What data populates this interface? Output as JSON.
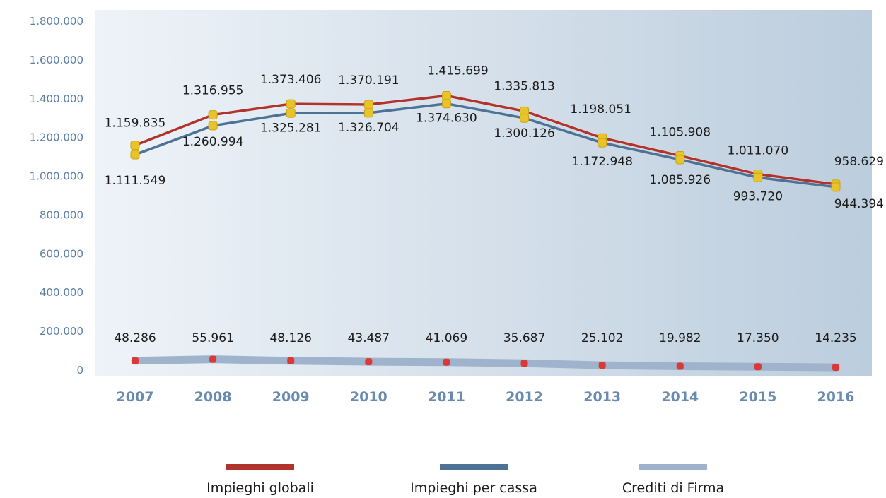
{
  "chart_data": {
    "type": "line",
    "categories": [
      "2007",
      "2008",
      "2009",
      "2010",
      "2011",
      "2012",
      "2013",
      "2014",
      "2015",
      "2016"
    ],
    "ylim": [
      0,
      1800000
    ],
    "yticks": [
      0,
      200000,
      400000,
      600000,
      800000,
      1000000,
      1200000,
      1400000,
      1600000,
      1800000
    ],
    "ytick_labels": [
      "0",
      "200.000",
      "400.000",
      "600.000",
      "800.000",
      "1.000.000",
      "1.200.000",
      "1.400.000",
      "1.600.000",
      "1.800.000"
    ],
    "grid": false,
    "legend": "bottom",
    "series": [
      {
        "name": "Impieghi globali",
        "color": "#b0332d",
        "values": [
          1159835,
          1316955,
          1373406,
          1370191,
          1415699,
          1335813,
          1198051,
          1105908,
          1011070,
          958629
        ],
        "labels": [
          "1.159.835",
          "1.316.955",
          "1.373.406",
          "1.370.191",
          "1.415.699",
          "1.335.813",
          "1.198.051",
          "1.105.908",
          "1.011.070",
          "958.629"
        ]
      },
      {
        "name": "Impieghi per cassa",
        "color": "#4c7395",
        "values": [
          1111549,
          1260994,
          1325281,
          1326704,
          1374630,
          1300126,
          1172948,
          1085926,
          993720,
          944394
        ],
        "labels": [
          "1.111.549",
          "1.260.994",
          "1.325.281",
          "1.326.704",
          "1.374.630",
          "1.300.126",
          "1.172.948",
          "1.085.926",
          "993.720",
          "944.394"
        ]
      },
      {
        "name": "Crediti di Firma",
        "color": "#9fb4cc",
        "values": [
          48286,
          55961,
          48126,
          43487,
          41069,
          35687,
          25102,
          19982,
          17350,
          14235
        ],
        "labels": [
          "48.286",
          "55.961",
          "48.126",
          "43.487",
          "41.069",
          "35.687",
          "25.102",
          "19.982",
          "17.350",
          "14.235"
        ]
      }
    ],
    "marker_colors": {
      "upper": "#e8c42a",
      "lower": "#d93a35"
    }
  }
}
